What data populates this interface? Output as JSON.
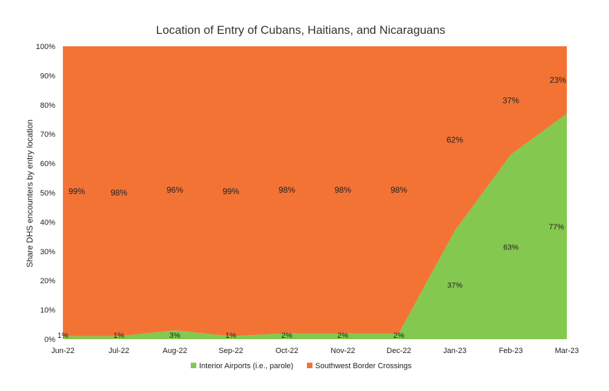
{
  "chart_data": {
    "type": "area",
    "stacked": true,
    "title": "Location of Entry of Cubans, Haitians, and Nicaraguans",
    "ylabel": "Share DHS encounters by entry location",
    "xlabel": "",
    "categories": [
      "Jun-22",
      "Jul-22",
      "Aug-22",
      "Sep-22",
      "Oct-22",
      "Nov-22",
      "Dec-22",
      "Jan-23",
      "Feb-23",
      "Mar-23"
    ],
    "ylim": [
      0,
      100
    ],
    "yticks": [
      "0%",
      "10%",
      "20%",
      "30%",
      "40%",
      "50%",
      "60%",
      "70%",
      "80%",
      "90%",
      "100%"
    ],
    "grid": false,
    "legend_position": "bottom",
    "series": [
      {
        "name": "Interior Airports (i.e., parole)",
        "color": "#84c850",
        "values": [
          1,
          1,
          3,
          1,
          2,
          2,
          2,
          37,
          63,
          77
        ],
        "labels": [
          "1%",
          "1%",
          "3%",
          "1%",
          "2%",
          "2%",
          "2%",
          "37%",
          "63%",
          "77%"
        ]
      },
      {
        "name": "Southwest Border Crossings",
        "color": "#f37335",
        "values": [
          99,
          98,
          96,
          99,
          98,
          98,
          98,
          62,
          37,
          23
        ],
        "labels": [
          "99%",
          "98%",
          "96%",
          "99%",
          "98%",
          "98%",
          "98%",
          "62%",
          "37%",
          "23%"
        ]
      }
    ]
  }
}
